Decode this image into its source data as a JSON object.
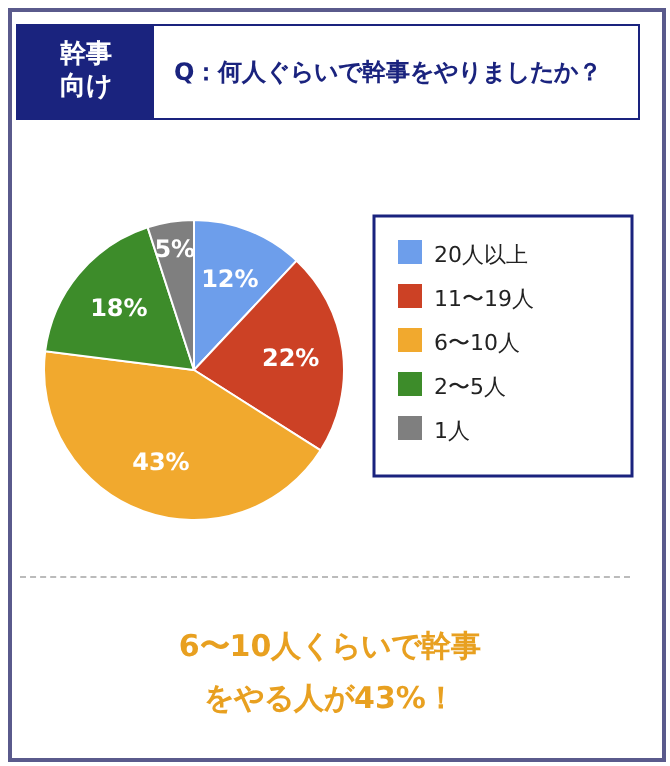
{
  "chart_data": {
    "type": "pie",
    "title": "Q：何人ぐらいで幹事をやりましたか？",
    "annotations": [
      "幹事向け",
      "6〜10人くらいで幹事をやる人が43%！"
    ],
    "categories": [
      "20人以上",
      "11〜19人",
      "6〜10人",
      "2〜5人",
      "1人"
    ],
    "values": [
      12,
      22,
      43,
      18,
      5
    ],
    "colors": [
      "#6d9eeb",
      "#cc4125",
      "#f1a92e",
      "#3d8c2a",
      "#7f7f7f"
    ],
    "value_labels": [
      "12%",
      "22%",
      "43%",
      "18%",
      "5%"
    ],
    "legend": "right"
  }
}
